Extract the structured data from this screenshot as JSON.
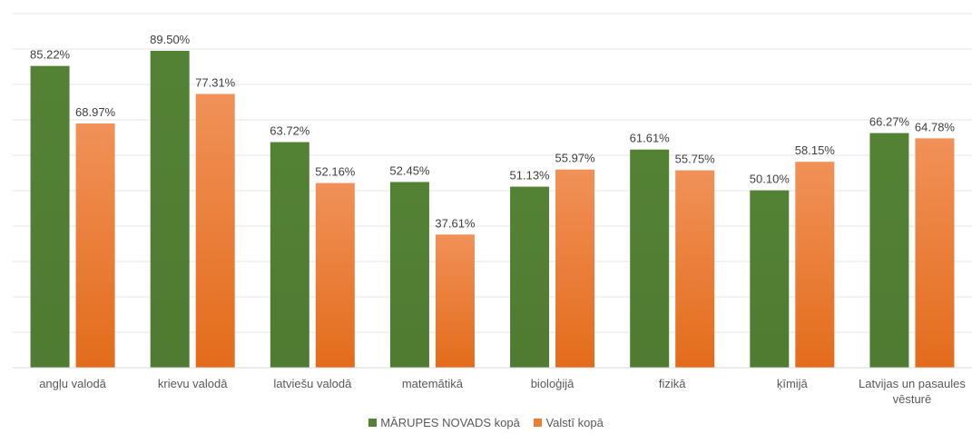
{
  "chart_data": {
    "type": "bar",
    "categories": [
      [
        "angļu valodā"
      ],
      [
        "krievu valodā"
      ],
      [
        "latviešu valodā"
      ],
      [
        "matemātikā"
      ],
      [
        "bioloģijā"
      ],
      [
        "fizikā"
      ],
      [
        "ķīmijā"
      ],
      [
        "Latvijas un pasaules",
        "vēsturē"
      ]
    ],
    "series": [
      {
        "name": "MĀRUPES NOVADS kopā",
        "color": "#548235",
        "values": [
          85.22,
          89.5,
          63.72,
          52.45,
          51.13,
          61.61,
          50.1,
          66.27
        ],
        "labels": [
          "85.22%",
          "89.50%",
          "63.72%",
          "52.45%",
          "51.13%",
          "61.61%",
          "50.10%",
          "66.27%"
        ]
      },
      {
        "name": "Valstī kopā",
        "color": "#ed7d31",
        "values": [
          68.97,
          77.31,
          52.16,
          37.61,
          55.97,
          55.75,
          58.15,
          64.78
        ],
        "labels": [
          "68.97%",
          "77.31%",
          "52.16%",
          "37.61%",
          "55.97%",
          "55.75%",
          "58.15%",
          "64.78%"
        ]
      }
    ],
    "ylim": [
      0,
      100
    ],
    "grid": true,
    "legend_position": "bottom"
  }
}
